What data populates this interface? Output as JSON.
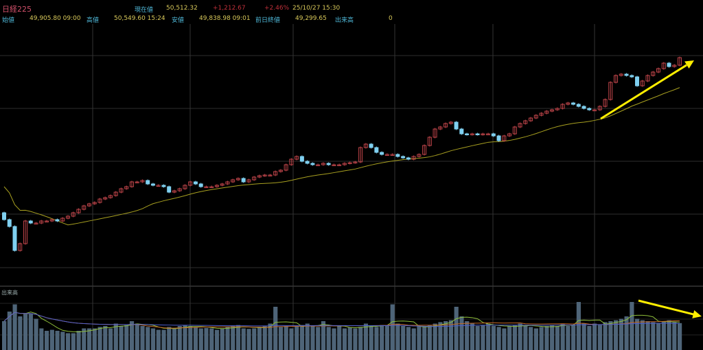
{
  "header": {
    "title": "日経225",
    "current_label": "現在値",
    "current_value": "50,512.32",
    "change": "+1,212.67",
    "change_pct": "+2.46%",
    "datetime": "25/10/27  15:30",
    "open_label": "始値",
    "open_value": "49,905.80  09:00",
    "high_label": "高値",
    "high_value": "50,549.60  15:24",
    "low_label": "安値",
    "low_value": "49,838.98  09:01",
    "prev_close_label": "前日終値",
    "prev_close_value": "49,299.65",
    "volume_label": "出来高",
    "volume_value": "0"
  },
  "volume_pane_label": "出来高",
  "colors": {
    "up": "#c0454a",
    "down": "#7fd0f0",
    "ma": "#a8a020",
    "volume": "#4e6478",
    "arrow": "#ffee00"
  },
  "chart_data": {
    "type": "candlestick",
    "ylim": [
      47180,
      51000
    ],
    "closes": [
      48150,
      48050,
      47700,
      47800,
      48130,
      48100,
      48100,
      48130,
      48130,
      48150,
      48130,
      48170,
      48200,
      48250,
      48300,
      48350,
      48380,
      48400,
      48450,
      48470,
      48500,
      48550,
      48600,
      48630,
      48700,
      48700,
      48720,
      48670,
      48650,
      48650,
      48630,
      48550,
      48570,
      48600,
      48650,
      48700,
      48670,
      48630,
      48630,
      48630,
      48650,
      48670,
      48700,
      48730,
      48750,
      48700,
      48730,
      48770,
      48790,
      48800,
      48800,
      48850,
      48870,
      48950,
      49030,
      49070,
      49000,
      48970,
      48950,
      48950,
      48970,
      48950,
      48950,
      48950,
      48970,
      48980,
      48990,
      49200,
      49250,
      49200,
      49130,
      49100,
      49100,
      49100,
      49070,
      49050,
      49030,
      49070,
      49100,
      49230,
      49350,
      49470,
      49500,
      49550,
      49570,
      49470,
      49400,
      49390,
      49400,
      49390,
      49400,
      49400,
      49370,
      49300,
      49370,
      49400,
      49500,
      49550,
      49590,
      49630,
      49670,
      49700,
      49730,
      49750,
      49770,
      49830,
      49850,
      49830,
      49800,
      49770,
      49750,
      49750,
      49800,
      49900,
      50150,
      50250,
      50270,
      50250,
      50230,
      50100,
      50170,
      50250,
      50300,
      50350,
      50430,
      50380,
      50400,
      50510
    ],
    "first_open": 48250,
    "volume_ylim": [
      0,
      100
    ],
    "volumes": [
      60,
      80,
      95,
      70,
      75,
      75,
      65,
      45,
      40,
      42,
      40,
      38,
      35,
      35,
      40,
      45,
      45,
      45,
      48,
      50,
      45,
      55,
      50,
      52,
      60,
      55,
      50,
      48,
      45,
      42,
      42,
      48,
      45,
      50,
      52,
      50,
      48,
      45,
      46,
      45,
      42,
      45,
      48,
      50,
      52,
      45,
      44,
      45,
      48,
      50,
      55,
      90,
      48,
      50,
      45,
      50,
      52,
      55,
      50,
      48,
      60,
      48,
      45,
      50,
      45,
      47,
      45,
      48,
      55,
      50,
      48,
      52,
      50,
      95,
      55,
      50,
      48,
      45,
      50,
      48,
      52,
      55,
      58,
      60,
      62,
      90,
      70,
      60,
      55,
      50,
      52,
      55,
      50,
      48,
      45,
      50,
      52,
      55,
      50,
      48,
      45,
      48,
      50,
      52,
      50,
      55,
      50,
      52,
      100,
      55,
      50,
      55,
      52,
      58,
      60,
      62,
      65,
      70,
      100,
      65,
      62,
      60,
      58,
      55,
      60,
      62,
      58,
      56
    ]
  }
}
